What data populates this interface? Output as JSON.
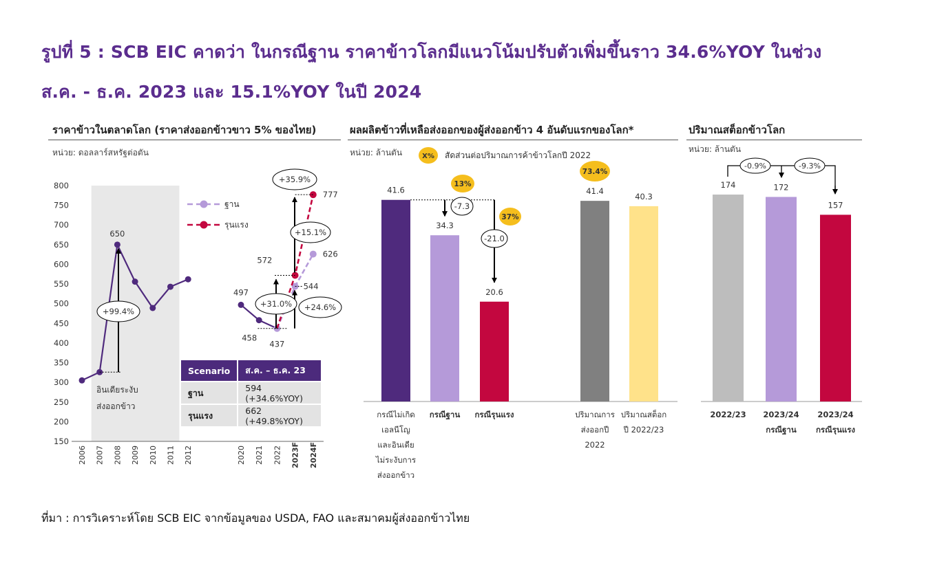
{
  "header": {
    "title_line1": "รูปที่ 5 : SCB EIC คาดว่า ในกรณีฐาน ราคาข้าวโลกมีแนวโน้มปรับตัวเพิ่มขึ้นราว 34.6%YOY ในช่วง",
    "title_line2": "ส.ค. - ธ.ค. 2023 และ 15.1%YOY ในปี 2024"
  },
  "source": "ที่มา : การวิเคราะห์โดย SCB EIC จากข้อมูลของ  USDA, FAO และสมาคมผู้ส่งออกข้าวไทย",
  "colors": {
    "purple_dark": "#4f2a7d",
    "purple_light": "#b59ad9",
    "crimson": "#c3073f",
    "gray": "#808080",
    "light_gray": "#bdbdbd",
    "yellow_light": "#ffe28a",
    "yellow_badge": "#f5be1d",
    "shade": "#e8e8e8"
  },
  "chart_data": [
    {
      "type": "line",
      "title": "ราคาข้าวในตลาดโลก (ราคาส่งออกข้าวขาว 5% ของไทย)",
      "unit": "หน่วย: ดอลลาร์สหรัฐต่อตัน",
      "ylim": [
        150,
        800
      ],
      "yticks": [
        150,
        200,
        250,
        300,
        350,
        400,
        450,
        500,
        550,
        600,
        650,
        700,
        750,
        800
      ],
      "categories": [
        "2006",
        "2007",
        "2008",
        "2009",
        "2010",
        "2011",
        "2012",
        "2020",
        "2021",
        "2022",
        "2023F",
        "2024F"
      ],
      "series": [
        {
          "name": "history",
          "x": [
            "2006",
            "2007",
            "2008",
            "2009",
            "2010",
            "2011",
            "2012"
          ],
          "values": [
            305,
            326,
            650,
            556,
            489,
            543,
            562
          ]
        },
        {
          "name": "recent",
          "x": [
            "2020",
            "2021",
            "2022"
          ],
          "values": [
            497,
            458,
            437
          ]
        },
        {
          "name": "ฐาน",
          "x": [
            "2022",
            "2023F",
            "2024F"
          ],
          "values": [
            437,
            544,
            626
          ]
        },
        {
          "name": "รุนแรง",
          "x": [
            "2022",
            "2023F",
            "2024F"
          ],
          "values": [
            437,
            572,
            777
          ]
        }
      ],
      "point_labels": [
        {
          "text": "650"
        },
        {
          "text": "497"
        },
        {
          "text": "458"
        },
        {
          "text": "437"
        },
        {
          "text": "572"
        },
        {
          "text": "544"
        },
        {
          "text": "626"
        },
        {
          "text": "777"
        }
      ],
      "legend": [
        {
          "name": "ฐาน",
          "color": "#b59ad9"
        },
        {
          "name": "รุนแรง",
          "color": "#c3073f"
        }
      ],
      "shaded_period_label": [
        "อินเดียระงับ",
        "ส่งออกข้าว"
      ],
      "annotations": [
        "+99.4%",
        "+31.0%",
        "+24.6%",
        "+15.1%",
        "+35.9%"
      ],
      "table": {
        "headers": [
          "Scenario",
          "ส.ค. – ธ.ค. 23"
        ],
        "rows": [
          [
            "ฐาน",
            "594 (+34.6%YOY)"
          ],
          [
            "รุนแรง",
            "662 (+49.8%YOY)"
          ]
        ]
      }
    },
    {
      "type": "bar",
      "title": "ผลผลิตข้าวที่เหลือส่งออกของผู้ส่งออกข้าว 4 อันดับแรกของโลก*",
      "unit": "หน่วย: ล้านตัน",
      "legend_badge": "X%",
      "legend_text": "สัดส่วนต่อปริมาณการค้าข้าวโลกปี 2022",
      "categories": [
        [
          "กรณีไม่เกิด",
          "เอลนีโญ",
          "และอินเดีย",
          "ไม่ระงับการ",
          "ส่งออกข้าว"
        ],
        [
          "กรณีฐาน"
        ],
        [
          "กรณีรุนแรง"
        ],
        [
          "ปริมาณการ",
          "ส่งออกปี",
          "2022"
        ],
        [
          "ปริมาณสต็อก",
          "ปี 2022/23"
        ]
      ],
      "values": [
        41.6,
        34.3,
        20.6,
        41.4,
        40.3
      ],
      "value_labels": [
        "41.6",
        "34.3",
        "20.6",
        "41.4",
        "40.3"
      ],
      "bar_colors": [
        "#4f2a7d",
        "#b59ad9",
        "#c3073f",
        "#808080",
        "#ffe28a"
      ],
      "bold_categories": [
        false,
        true,
        true,
        false,
        false
      ],
      "badges": [
        "13%",
        "37%",
        "73.4%"
      ],
      "deltas": [
        "-7.3",
        "-21.0"
      ],
      "ylim": [
        0,
        50
      ]
    },
    {
      "type": "bar",
      "title": "ปริมาณสต็อกข้าวโลก",
      "unit": "หน่วย: ล้านตัน",
      "categories": [
        [
          "2022/23"
        ],
        [
          "2023/24",
          "กรณีฐาน"
        ],
        [
          "2023/24",
          "กรณีรุนแรง"
        ]
      ],
      "values": [
        174,
        172,
        157
      ],
      "value_labels": [
        "174",
        "172",
        "157"
      ],
      "bar_colors": [
        "#bdbdbd",
        "#b59ad9",
        "#c3073f"
      ],
      "deltas": [
        "-0.9%",
        "-9.3%"
      ],
      "ylim": [
        0,
        209
      ]
    }
  ]
}
